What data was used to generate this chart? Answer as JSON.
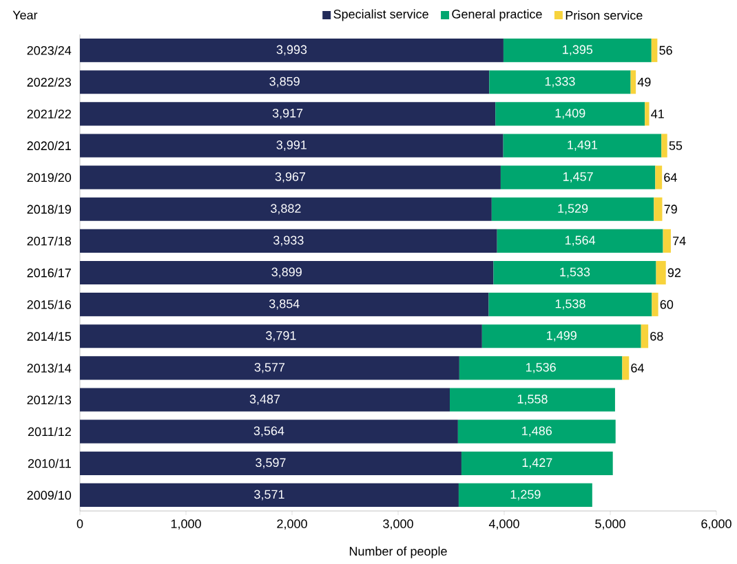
{
  "chart_data": {
    "type": "bar",
    "orientation": "horizontal",
    "stacked": true,
    "ylabel": "Year",
    "xlabel": "Number of people",
    "legend": "top right",
    "grid": false,
    "categories": [
      "2023/24",
      "2022/23",
      "2021/22",
      "2020/21",
      "2019/20",
      "2018/19",
      "2017/18",
      "2016/17",
      "2015/16",
      "2014/15",
      "2013/14",
      "2012/13",
      "2011/12",
      "2010/11",
      "2009/10"
    ],
    "xlim": [
      0,
      6000
    ],
    "xticks": [
      {
        "value": 0,
        "label": "0"
      },
      {
        "value": 1000,
        "label": "1,000"
      },
      {
        "value": 2000,
        "label": "2,000"
      },
      {
        "value": 3000,
        "label": "3,000"
      },
      {
        "value": 4000,
        "label": "4,000"
      },
      {
        "value": 5000,
        "label": "5,000"
      },
      {
        "value": 6000,
        "label": "6,000"
      }
    ],
    "series": [
      {
        "name": "Specialist service",
        "color": "#222b59",
        "values": [
          3993,
          3859,
          3917,
          3991,
          3967,
          3882,
          3933,
          3899,
          3854,
          3791,
          3577,
          3487,
          3564,
          3597,
          3571
        ],
        "value_labels": [
          "3,993",
          "3,859",
          "3,917",
          "3,991",
          "3,967",
          "3,882",
          "3,933",
          "3,899",
          "3,854",
          "3,791",
          "3,577",
          "3,487",
          "3,564",
          "3,597",
          "3,571"
        ]
      },
      {
        "name": "General practice",
        "color": "#00a66f",
        "values": [
          1395,
          1333,
          1409,
          1491,
          1457,
          1529,
          1564,
          1533,
          1538,
          1499,
          1536,
          1558,
          1486,
          1427,
          1259
        ],
        "value_labels": [
          "1,395",
          "1,333",
          "1,409",
          "1,491",
          "1,457",
          "1,529",
          "1,564",
          "1,533",
          "1,538",
          "1,499",
          "1,536",
          "1,558",
          "1,486",
          "1,427",
          "1,259"
        ]
      },
      {
        "name": "Prison service",
        "color": "#f7d33c",
        "values": [
          56,
          49,
          41,
          55,
          64,
          79,
          74,
          92,
          60,
          68,
          64,
          null,
          null,
          null,
          null
        ],
        "value_labels": [
          "56",
          "49",
          "41",
          "55",
          "64",
          "79",
          "74",
          "92",
          "60",
          "68",
          "64",
          null,
          null,
          null,
          null
        ]
      }
    ]
  }
}
